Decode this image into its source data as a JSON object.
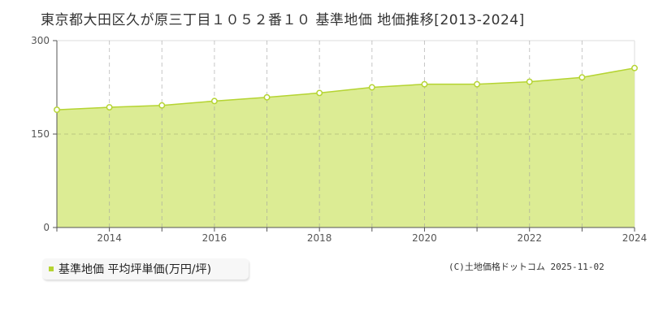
{
  "header": {
    "title": "東京都大田区久が原三丁目１０５２番１０ 基準地価 地価推移[2013-2024]"
  },
  "legend": {
    "label": "基準地価 平均坪単価(万円/坪)",
    "color": "#b5d432"
  },
  "footer": {
    "copyright": "(C)土地価格ドットコム 2025-11-02"
  },
  "colors": {
    "fill": "#dcec94",
    "line": "#b5d432",
    "grid": "#cccccc",
    "axis": "#555555"
  },
  "chart_data": {
    "type": "area",
    "title": "東京都大田区久が原三丁目１０５２番１０ 基準地価 地価推移[2013-2024]",
    "xlabel": "",
    "ylabel": "",
    "x": [
      2013,
      2014,
      2015,
      2016,
      2017,
      2018,
      2019,
      2020,
      2021,
      2022,
      2023,
      2024
    ],
    "series": [
      {
        "name": "基準地価 平均坪単価(万円/坪)",
        "values": [
          189,
          193,
          196,
          203,
          209,
          216,
          225,
          230,
          230,
          234,
          241,
          256
        ]
      }
    ],
    "ylim": [
      0,
      300
    ],
    "yticks": [
      0,
      150,
      300
    ],
    "xticks": [
      2014,
      2016,
      2018,
      2020,
      2022,
      2024
    ],
    "grid": true,
    "legend_position": "bottom-left"
  }
}
